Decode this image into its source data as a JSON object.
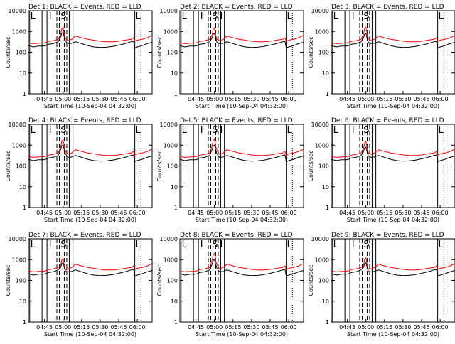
{
  "chart_data": {
    "type": "line",
    "panel_title_suffix": ": BLACK = Events, RED = LLD",
    "xlabel": "Start Time (10-Sep-04 04:32:00)",
    "ylabel": "Counts/sec",
    "y_scale": "log",
    "ylim": [
      1,
      10000
    ],
    "y_ticks": [
      "1",
      "10",
      "100",
      "1000",
      "10000"
    ],
    "x_ticks": [
      "04:45",
      "05:00",
      "05:15",
      "05:30",
      "05:45",
      "06:00"
    ],
    "x_tick_minutes": [
      45,
      60,
      75,
      90,
      105,
      120
    ],
    "x_range_minutes": [
      32,
      132
    ],
    "grid": false,
    "legend": "none",
    "series_colors": {
      "events": "#000000",
      "lld": "#ff0000"
    },
    "panels": [
      {
        "label": "Det 1",
        "region_letters": [
          "L",
          "I",
          "S",
          "I",
          "L"
        ],
        "peak_events": 900,
        "peak_lld": 1600
      },
      {
        "label": "Det 2",
        "region_letters": [
          "L",
          "I",
          "S",
          "I",
          "L"
        ],
        "peak_events": 800,
        "peak_lld": 1500
      },
      {
        "label": "Det 3",
        "region_letters": [
          "L",
          "I",
          "S",
          "I",
          "L"
        ],
        "peak_events": 800,
        "peak_lld": 1600
      },
      {
        "label": "Det 4",
        "region_letters": [
          "L",
          "I",
          "S",
          "I",
          "L"
        ],
        "peak_events": 1000,
        "peak_lld": 1800
      },
      {
        "label": "Det 5",
        "region_letters": [
          "L",
          "I",
          "S",
          "I",
          "L"
        ],
        "peak_events": 1000,
        "peak_lld": 2000
      },
      {
        "label": "Det 6",
        "region_letters": [
          "L",
          "I",
          "S",
          "I",
          "L"
        ],
        "peak_events": 800,
        "peak_lld": 1500
      },
      {
        "label": "Det 7",
        "region_letters": [
          "L",
          "I",
          "S",
          "I",
          "L"
        ],
        "peak_events": 700,
        "peak_lld": 1100
      },
      {
        "label": "Det 8",
        "region_letters": [
          "L",
          "I",
          "S",
          "I",
          "L"
        ],
        "peak_events": 1000,
        "peak_lld": 2000
      },
      {
        "label": "Det 9",
        "region_letters": [
          "L",
          "I",
          "S",
          "I",
          "L"
        ],
        "peak_events": 700,
        "peak_lld": 1200
      }
    ],
    "boundaries_minutes": {
      "solid": [
        33,
        43,
        47,
        65,
        68,
        118
      ],
      "dashed": [
        55,
        57,
        61,
        63
      ],
      "dotted": [
        123
      ]
    },
    "series_template": {
      "x": [
        32,
        36,
        40,
        44,
        46,
        48,
        52,
        56,
        58,
        59,
        60,
        61,
        62,
        64,
        67,
        70,
        75,
        80,
        85,
        90,
        95,
        100,
        105,
        110,
        115,
        117,
        118,
        120,
        124,
        128,
        132
      ],
      "events": [
        210,
        180,
        200,
        200,
        210,
        240,
        260,
        320,
        500,
        800,
        850,
        500,
        320,
        260,
        270,
        320,
        260,
        210,
        180,
        170,
        175,
        190,
        220,
        260,
        320,
        340,
        160,
        180,
        210,
        260,
        300
      ],
      "lld": [
        280,
        260,
        270,
        280,
        290,
        330,
        360,
        420,
        700,
        1400,
        1600,
        700,
        450,
        360,
        420,
        600,
        500,
        420,
        380,
        340,
        320,
        320,
        340,
        380,
        420,
        500,
        330,
        380,
        420,
        500,
        650
      ]
    }
  }
}
